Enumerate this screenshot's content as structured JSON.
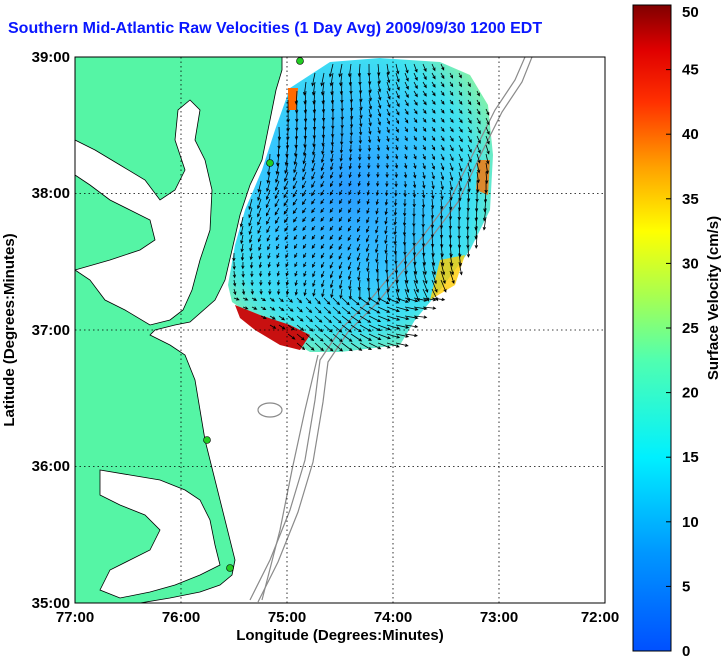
{
  "title": "Southern Mid-Atlantic Raw Velocities (1 Day Avg) 2009/09/30 1200 EDT",
  "map": {
    "xlabel": "Longitude (Degrees:Minutes)",
    "ylabel": "Latitude (Degrees:Minutes)",
    "x_ticks": [
      "77:00",
      "76:00",
      "75:00",
      "74:00",
      "73:00",
      "72:00"
    ],
    "y_ticks": [
      "39:00",
      "38:00",
      "37:00",
      "36:00",
      "35:00"
    ],
    "lon_range": [
      -77,
      -72
    ],
    "lat_range": [
      35,
      39
    ],
    "land_color": "#55f5a5",
    "ocean_color": "#ffffff",
    "grid": "dotted"
  },
  "colorbar": {
    "label": "Surface Velocity (cm/s)",
    "min": 0,
    "max": 50,
    "ticks": [
      "0",
      "5",
      "10",
      "15",
      "20",
      "25",
      "30",
      "35",
      "40",
      "45",
      "50"
    ],
    "colormap": "jet"
  }
}
